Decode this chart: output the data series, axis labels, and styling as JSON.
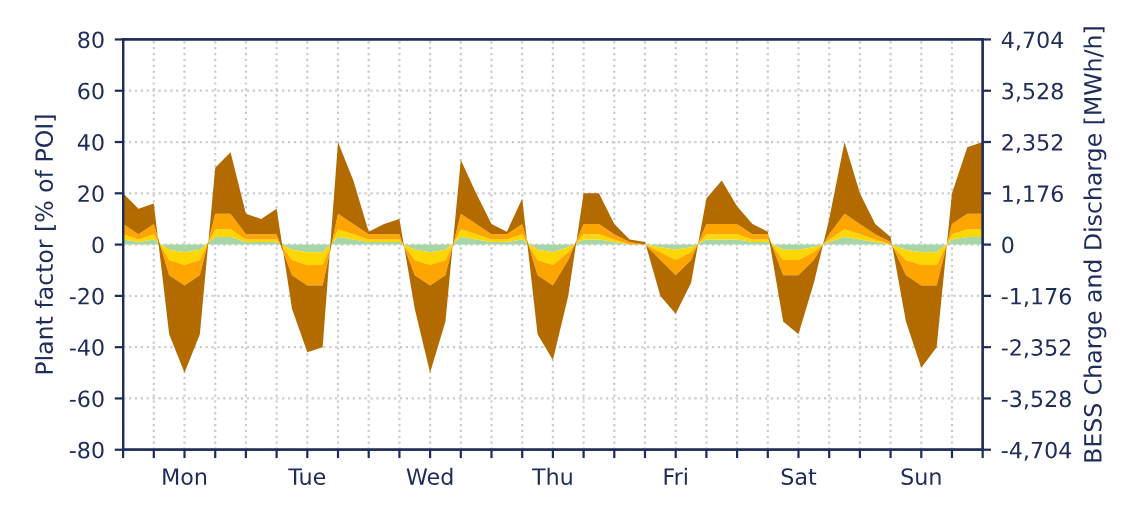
{
  "chart_data": {
    "type": "area",
    "stacked": true,
    "xlabel": null,
    "ylabel": "Plant factor [% of POI]",
    "y2label": "BESS Charge and Discharge [MWh/h]",
    "categories": [
      null,
      null,
      null,
      null,
      "Mon",
      null,
      null,
      null,
      null,
      null,
      null,
      null,
      "Tue",
      null,
      null,
      null,
      null,
      null,
      null,
      null,
      "Wed",
      null,
      null,
      null,
      null,
      null,
      null,
      null,
      "Thu",
      null,
      null,
      null,
      null,
      null,
      null,
      null,
      "Fri",
      null,
      null,
      null,
      null,
      null,
      null,
      null,
      "Sat",
      null,
      null,
      null,
      null,
      null,
      null,
      null,
      "Sun",
      null,
      null,
      null,
      null
    ],
    "series": [
      {
        "color": "#a8d5a8",
        "values": [
          2,
          1,
          2,
          -2,
          -3,
          -2,
          3,
          3,
          1,
          1,
          1,
          -2,
          -3,
          -3,
          3,
          2,
          1,
          1,
          1,
          -2,
          -3,
          -2,
          3,
          2,
          1,
          1,
          2,
          -2,
          -3,
          -1,
          2,
          2,
          1,
          0,
          0,
          -1,
          -2,
          -1,
          2,
          2,
          2,
          1,
          1,
          -2,
          -2,
          -1,
          1,
          3,
          2,
          1,
          0,
          -2,
          -3,
          -3,
          2,
          3,
          3
        ]
      },
      {
        "color": "#ffd700",
        "values": [
          2,
          1,
          2,
          -4,
          -5,
          -4,
          3,
          3,
          1,
          1,
          1,
          -4,
          -5,
          -5,
          3,
          2,
          1,
          1,
          1,
          -4,
          -5,
          -4,
          3,
          2,
          1,
          1,
          2,
          -4,
          -5,
          -2,
          2,
          2,
          1,
          0,
          0,
          -2,
          -4,
          -2,
          2,
          2,
          2,
          1,
          1,
          -4,
          -4,
          -2,
          1,
          3,
          2,
          1,
          0,
          -4,
          -5,
          -5,
          2,
          3,
          3
        ]
      },
      {
        "color": "#ffa500",
        "values": [
          4,
          2,
          4,
          -6,
          -8,
          -6,
          6,
          6,
          2,
          2,
          2,
          -6,
          -8,
          -8,
          6,
          4,
          2,
          2,
          2,
          -6,
          -8,
          -6,
          6,
          4,
          2,
          2,
          4,
          -6,
          -8,
          -3,
          4,
          4,
          2,
          1,
          0,
          -3,
          -6,
          -3,
          4,
          4,
          4,
          2,
          2,
          -6,
          -6,
          -3,
          2,
          6,
          4,
          2,
          1,
          -6,
          -8,
          -8,
          4,
          6,
          6
        ]
      },
      {
        "color": "#b36b00",
        "values": [
          12,
          10,
          8,
          -23,
          -34,
          -23,
          18,
          24,
          8,
          6,
          10,
          -13,
          -26,
          -24,
          28,
          17,
          1,
          4,
          6,
          -13,
          -34,
          -18,
          21,
          12,
          4,
          1,
          10,
          -23,
          -29,
          -14,
          12,
          12,
          4,
          1,
          1,
          -14,
          -15,
          -9,
          10,
          17,
          7,
          4,
          1,
          -18,
          -23,
          -9,
          6,
          28,
          12,
          4,
          2,
          -18,
          -32,
          -24,
          12,
          26,
          28
        ]
      }
    ],
    "ylim": [
      -80,
      80
    ],
    "yticks": [
      -80,
      -60,
      -40,
      -20,
      0,
      20,
      40,
      60,
      80
    ],
    "y2lim": [
      -4704,
      4704
    ],
    "y2ticks": [
      {
        "value": -4704,
        "label": "-4,704"
      },
      {
        "value": -3528,
        "label": "-3,528"
      },
      {
        "value": -2352,
        "label": "-2,352"
      },
      {
        "value": -1176,
        "label": "-1,176"
      },
      0,
      {
        "value": 1176,
        "label": "1,176"
      },
      {
        "value": 2352,
        "label": "2,352"
      },
      {
        "value": 3528,
        "label": "3,528"
      },
      {
        "value": 4704,
        "label": "4,704"
      }
    ],
    "grid": true
  }
}
